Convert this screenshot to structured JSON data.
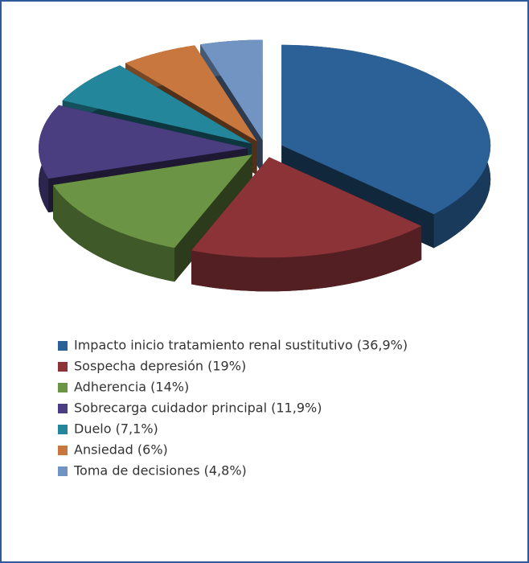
{
  "chart_data": {
    "type": "pie",
    "categories": [
      "Impacto inicio tratamiento renal sustitutivo (36,9%)",
      "Sospecha depresión (19%)",
      "Adherencia (14%)",
      "Sobrecarga cuidador principal (11,9%)",
      "Duelo (7,1%)",
      "Ansiedad (6%)",
      "Toma de decisiones (4,8%)"
    ],
    "values": [
      36.9,
      19,
      14,
      11.9,
      7.1,
      6,
      4.8
    ],
    "colors": [
      "#2b6197",
      "#8c3338",
      "#6b9444",
      "#4a3d80",
      "#23869b",
      "#c8773e",
      "#7294c2"
    ],
    "legend": "bottom"
  }
}
